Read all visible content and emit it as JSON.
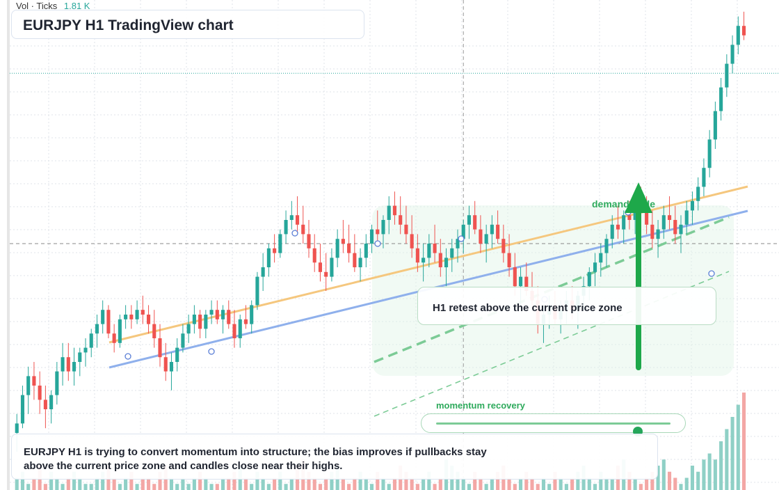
{
  "title": "EURJPY H1 TradingView chart",
  "volume_legend": {
    "label": "Vol · Ticks",
    "value": "1.81 K"
  },
  "annotations": {
    "retest": "H1 retest above the current price zone",
    "demand": "demand node",
    "momentum": "momentum recovery",
    "summary": "EURJPY H1 is trying to convert momentum into structure; the bias improves if pullbacks stay above the current price zone and candles close near their highs."
  },
  "momentum_level": 0.86,
  "colors": {
    "up": "#26a69a",
    "down": "#ef5350",
    "up_volume": "#8fd0c6",
    "down_volume": "#f3a7a5",
    "trend_orange": "#f5c77e",
    "trend_blue": "#8fb0ec",
    "channel_green": "#7ccb96",
    "arrow_green": "#1ea84a",
    "label_green": "#2eaa5c"
  },
  "chart_data": {
    "type": "candlestick",
    "title": "",
    "interval": "H1",
    "symbol": "EURJPY",
    "ylim": [
      0,
      100
    ],
    "xlim": [
      0,
      130
    ],
    "grid": true,
    "price_levels": {
      "current_price": 86,
      "crosshair_price": 50,
      "crosshair_bar": 79
    },
    "candles": [
      [
        1,
        10,
        14,
        6,
        12
      ],
      [
        2,
        12,
        20,
        11,
        18
      ],
      [
        3,
        18,
        24,
        14,
        22
      ],
      [
        4,
        22,
        25,
        17,
        20
      ],
      [
        5,
        20,
        23,
        14,
        17
      ],
      [
        6,
        17,
        20,
        11,
        15
      ],
      [
        7,
        15,
        19,
        12,
        18
      ],
      [
        8,
        18,
        25,
        16,
        23
      ],
      [
        9,
        23,
        29,
        20,
        26
      ],
      [
        10,
        26,
        29,
        21,
        23
      ],
      [
        11,
        23,
        28,
        20,
        25
      ],
      [
        12,
        25,
        28,
        22,
        27
      ],
      [
        13,
        27,
        30,
        24,
        28
      ],
      [
        14,
        28,
        32,
        26,
        31
      ],
      [
        15,
        31,
        35,
        28,
        33
      ],
      [
        16,
        33,
        38,
        31,
        36
      ],
      [
        17,
        36,
        37,
        30,
        31
      ],
      [
        18,
        31,
        33,
        27,
        29
      ],
      [
        19,
        29,
        35,
        28,
        34
      ],
      [
        20,
        34,
        37,
        32,
        35
      ],
      [
        21,
        35,
        37,
        32,
        34
      ],
      [
        22,
        34,
        38,
        33,
        36
      ],
      [
        23,
        36,
        39,
        33,
        35
      ],
      [
        24,
        35,
        37,
        31,
        33
      ],
      [
        25,
        33,
        36,
        28,
        30
      ],
      [
        26,
        30,
        33,
        24,
        26
      ],
      [
        27,
        26,
        29,
        21,
        23
      ],
      [
        28,
        23,
        27,
        19,
        25
      ],
      [
        29,
        25,
        30,
        23,
        28
      ],
      [
        30,
        28,
        33,
        27,
        31
      ],
      [
        31,
        31,
        35,
        29,
        33
      ],
      [
        32,
        33,
        37,
        31,
        35
      ],
      [
        33,
        35,
        36,
        30,
        32
      ],
      [
        34,
        32,
        36,
        30,
        35
      ],
      [
        35,
        35,
        38,
        33,
        36
      ],
      [
        36,
        36,
        38,
        33,
        34
      ],
      [
        37,
        34,
        37,
        31,
        36
      ],
      [
        38,
        36,
        38,
        32,
        33
      ],
      [
        39,
        33,
        36,
        28,
        30
      ],
      [
        40,
        30,
        35,
        28,
        34
      ],
      [
        41,
        34,
        37,
        32,
        33
      ],
      [
        42,
        33,
        38,
        31,
        37
      ],
      [
        43,
        37,
        44,
        36,
        43
      ],
      [
        44,
        43,
        48,
        40,
        45
      ],
      [
        45,
        45,
        50,
        43,
        49
      ],
      [
        46,
        49,
        52,
        46,
        48
      ],
      [
        47,
        48,
        53,
        47,
        52
      ],
      [
        48,
        52,
        57,
        50,
        55
      ],
      [
        49,
        55,
        59,
        53,
        56
      ],
      [
        50,
        56,
        60,
        52,
        54
      ],
      [
        51,
        54,
        58,
        50,
        52
      ],
      [
        52,
        52,
        55,
        47,
        49
      ],
      [
        53,
        49,
        52,
        44,
        46
      ],
      [
        54,
        46,
        50,
        42,
        44
      ],
      [
        55,
        44,
        48,
        40,
        43
      ],
      [
        56,
        43,
        49,
        42,
        47
      ],
      [
        57,
        47,
        53,
        45,
        51
      ],
      [
        58,
        51,
        55,
        48,
        50
      ],
      [
        59,
        50,
        54,
        46,
        48
      ],
      [
        60,
        48,
        52,
        44,
        45
      ],
      [
        61,
        45,
        49,
        42,
        47
      ],
      [
        62,
        47,
        52,
        45,
        50
      ],
      [
        63,
        50,
        54,
        48,
        53
      ],
      [
        64,
        53,
        57,
        50,
        52
      ],
      [
        65,
        52,
        56,
        49,
        55
      ],
      [
        66,
        55,
        60,
        52,
        58
      ],
      [
        67,
        58,
        61,
        54,
        56
      ],
      [
        68,
        56,
        60,
        52,
        54
      ],
      [
        69,
        54,
        58,
        50,
        52
      ],
      [
        70,
        52,
        56,
        47,
        49
      ],
      [
        71,
        49,
        52,
        44,
        46
      ],
      [
        72,
        46,
        50,
        42,
        47
      ],
      [
        73,
        47,
        52,
        45,
        50
      ],
      [
        74,
        50,
        54,
        46,
        48
      ],
      [
        75,
        48,
        51,
        43,
        45
      ],
      [
        76,
        45,
        49,
        41,
        47
      ],
      [
        77,
        47,
        51,
        44,
        49
      ],
      [
        78,
        49,
        53,
        46,
        51
      ],
      [
        79,
        51,
        55,
        48,
        54
      ],
      [
        80,
        54,
        58,
        51,
        56
      ],
      [
        81,
        56,
        59,
        52,
        53
      ],
      [
        82,
        53,
        56,
        48,
        50
      ],
      [
        83,
        50,
        54,
        46,
        52
      ],
      [
        84,
        52,
        56,
        49,
        54
      ],
      [
        85,
        54,
        57,
        50,
        51
      ],
      [
        86,
        51,
        54,
        46,
        48
      ],
      [
        87,
        48,
        52,
        43,
        45
      ],
      [
        88,
        45,
        48,
        39,
        41
      ],
      [
        89,
        41,
        45,
        37,
        43
      ],
      [
        90,
        43,
        46,
        39,
        40
      ],
      [
        91,
        40,
        44,
        36,
        38
      ],
      [
        92,
        38,
        41,
        31,
        33
      ],
      [
        93,
        33,
        37,
        29,
        35
      ],
      [
        94,
        35,
        39,
        32,
        37
      ],
      [
        95,
        37,
        40,
        33,
        34
      ],
      [
        96,
        34,
        38,
        31,
        36
      ],
      [
        97,
        36,
        40,
        33,
        38
      ],
      [
        98,
        38,
        41,
        34,
        36
      ],
      [
        99,
        36,
        40,
        32,
        39
      ],
      [
        100,
        39,
        43,
        36,
        41
      ],
      [
        101,
        41,
        45,
        38,
        44
      ],
      [
        102,
        44,
        48,
        41,
        46
      ],
      [
        103,
        46,
        50,
        43,
        48
      ],
      [
        104,
        48,
        52,
        45,
        51
      ],
      [
        105,
        51,
        56,
        49,
        54
      ],
      [
        106,
        54,
        58,
        51,
        53
      ],
      [
        107,
        53,
        57,
        50,
        56
      ],
      [
        108,
        56,
        59,
        53,
        55
      ],
      [
        109,
        55,
        60,
        52,
        58
      ],
      [
        110,
        58,
        62,
        54,
        57
      ],
      [
        111,
        57,
        60,
        52,
        54
      ],
      [
        112,
        54,
        57,
        49,
        51
      ],
      [
        113,
        51,
        55,
        47,
        53
      ],
      [
        114,
        53,
        58,
        51,
        56
      ],
      [
        115,
        56,
        60,
        53,
        55
      ],
      [
        116,
        55,
        58,
        50,
        52
      ],
      [
        117,
        52,
        56,
        48,
        54
      ],
      [
        118,
        54,
        59,
        52,
        57
      ],
      [
        119,
        57,
        61,
        54,
        59
      ],
      [
        120,
        59,
        64,
        57,
        62
      ],
      [
        121,
        62,
        68,
        60,
        66
      ],
      [
        122,
        66,
        74,
        64,
        72
      ],
      [
        123,
        72,
        80,
        70,
        78
      ],
      [
        124,
        78,
        85,
        76,
        83
      ],
      [
        125,
        83,
        90,
        81,
        88
      ],
      [
        126,
        88,
        94,
        86,
        92
      ],
      [
        127,
        92,
        98,
        90,
        96
      ],
      [
        128,
        96,
        99,
        93,
        94
      ]
    ],
    "volume": [
      2,
      3,
      1,
      2,
      4,
      1,
      3,
      2,
      1,
      2,
      3,
      2,
      1,
      1,
      2,
      3,
      4,
      2,
      1,
      2,
      3,
      1,
      2,
      2,
      1,
      3,
      4,
      2,
      1,
      2,
      1,
      2,
      3,
      2,
      1,
      1,
      2,
      2,
      3,
      4,
      2,
      1,
      3,
      2,
      1,
      2,
      3,
      1,
      2,
      4,
      5,
      3,
      2,
      1,
      2,
      3,
      4,
      2,
      1,
      2,
      3,
      2,
      1,
      3,
      2,
      1,
      2,
      4,
      3,
      2,
      1,
      2,
      3,
      1,
      2,
      5,
      4,
      3,
      2,
      1,
      3,
      2,
      1,
      2,
      3,
      4,
      2,
      1,
      2,
      3,
      2,
      1,
      2,
      1,
      3,
      2,
      1,
      2,
      3,
      4,
      2,
      1,
      3,
      2,
      2,
      4,
      5,
      3,
      2,
      1,
      2,
      3,
      4,
      5,
      3,
      2,
      1,
      2,
      4,
      3,
      5,
      6,
      5,
      8,
      10,
      12,
      14,
      16
    ]
  }
}
